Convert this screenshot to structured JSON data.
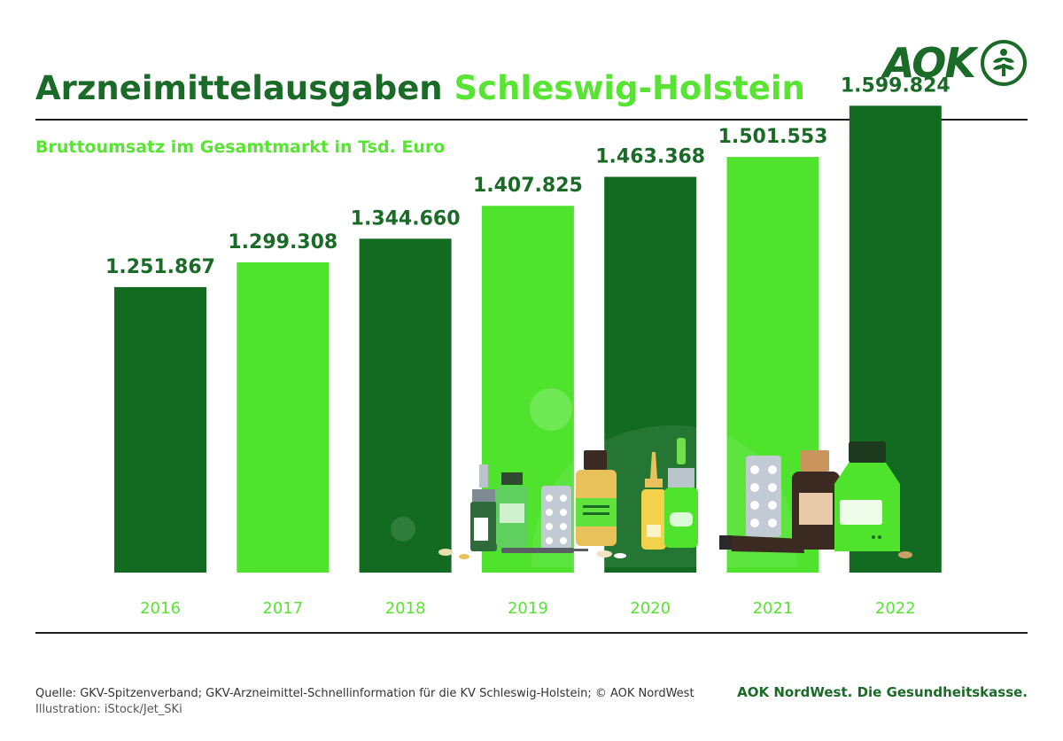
{
  "header": {
    "title_main": "Arzneimittelausgaben",
    "title_accent": "Schleswig-Holstein",
    "subtitle": "Bruttoumsatz im Gesamtmarkt in Tsd. Euro",
    "logo_text": "AOK",
    "logo_icon": "aok-tree-emblem-icon"
  },
  "colors": {
    "dark_green": "#1b6b28",
    "light_green": "#57e432",
    "bar_dark": "#136b21",
    "bar_light": "#4fe32e"
  },
  "chart_data": {
    "type": "bar",
    "categories": [
      "2016",
      "2017",
      "2018",
      "2019",
      "2020",
      "2021",
      "2022"
    ],
    "values": [
      1251867,
      1299308,
      1344660,
      1407825,
      1463368,
      1501553,
      1599824
    ],
    "data_labels": [
      "1.251.867",
      "1.299.308",
      "1.344.660",
      "1.407.825",
      "1.463.368",
      "1.501.553",
      "1.599.824"
    ],
    "bar_colors": [
      "#136b21",
      "#4fe32e",
      "#136b21",
      "#4fe32e",
      "#136b21",
      "#4fe32e",
      "#136b21"
    ],
    "title": "Bruttoumsatz im Gesamtmarkt in Tsd. Euro",
    "xlabel": "",
    "ylabel": "",
    "grid": false,
    "legend": "none"
  },
  "illustration": "medicine-bottles-illustration",
  "footer": {
    "source": "Quelle: GKV-Spitzenverband; GKV-Arzneimittel-Schnellinformation für die KV Schleswig-Holstein; © AOK NordWest",
    "illustration_credit": "Illustration: iStock/Jet_SKi",
    "tagline": "AOK NordWest. Die Gesundheitskasse."
  }
}
